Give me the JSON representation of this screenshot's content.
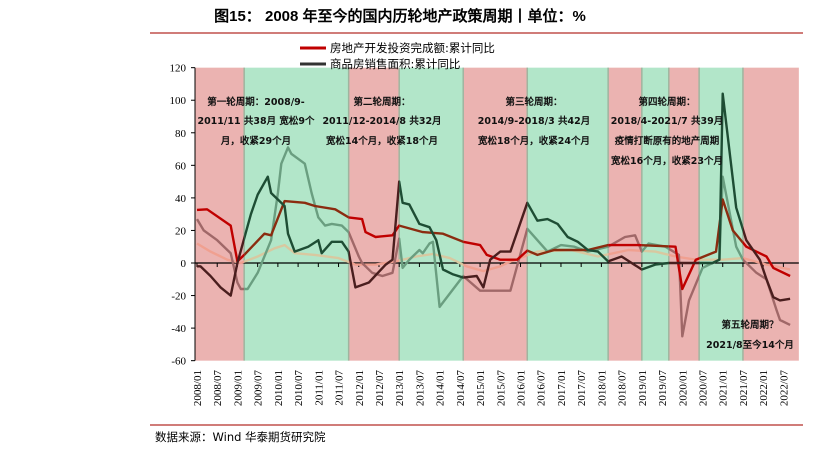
{
  "title": "图15：  2008 年至今的国内历轮地产政策周期丨单位：%",
  "source": "数据来源：Wind  华泰期货研究院",
  "colors": {
    "band_tight": "#ebb3b1",
    "band_loose": "#b2e6c9",
    "frame": "#c0504d"
  },
  "annotations": [
    [
      "第一轮周期：2008/9-",
      "2011/11 共38月 宽松9个",
      "月，收紧29个月"
    ],
    [
      "第二轮周期：",
      "2011/12-2014/8 共32月",
      "宽松14个月，收紧18个月"
    ],
    [
      "第三轮周期：",
      "2014/9-2018/3 共42月",
      "宽松18个月，收紧24个月"
    ],
    [
      "第四轮周期：",
      "2018/4-2021/7 共39月",
      "疫情打断原有的地产周期",
      "宽松16个月，收紧23个月"
    ],
    [
      "第五轮周期？",
      "2021/8至今14个月"
    ]
  ],
  "chart_data": {
    "type": "line",
    "title": "2008 年至今的国内历轮地产政策周期",
    "ylabel": "%",
    "ylim": [
      -60,
      120
    ],
    "yticks": [
      120,
      100,
      80,
      60,
      40,
      20,
      0,
      -20,
      -40,
      -60
    ],
    "xticks": [
      "2008/01",
      "2008/07",
      "2009/01",
      "2009/07",
      "2010/01",
      "2010/07",
      "2011/01",
      "2011/07",
      "2012/01",
      "2012/07",
      "2013/01",
      "2013/07",
      "2014/01",
      "2014/07",
      "2015/01",
      "2015/07",
      "2016/01",
      "2016/07",
      "2017/01",
      "2017/07",
      "2018/01",
      "2018/07",
      "2019/01",
      "2019/07",
      "2020/01",
      "2020/07",
      "2021/01",
      "2021/07",
      "2022/01",
      "2022/07"
    ],
    "xlim": [
      "2008/01",
      "2022/11"
    ],
    "grid": false,
    "legend_position": "top",
    "bands": [
      {
        "start": "2008/01",
        "end": "2009/03",
        "phase": "tight"
      },
      {
        "start": "2009/03",
        "end": "2011/10",
        "phase": "loose"
      },
      {
        "start": "2011/10",
        "end": "2013/01",
        "phase": "tight"
      },
      {
        "start": "2013/01",
        "end": "2014/08",
        "phase": "loose"
      },
      {
        "start": "2014/08",
        "end": "2016/03",
        "phase": "tight"
      },
      {
        "start": "2016/03",
        "end": "2018/03",
        "phase": "loose"
      },
      {
        "start": "2018/03",
        "end": "2019/01",
        "phase": "tight"
      },
      {
        "start": "2019/01",
        "end": "2019/09",
        "phase": "loose"
      },
      {
        "start": "2019/09",
        "end": "2020/06",
        "phase": "tight"
      },
      {
        "start": "2020/06",
        "end": "2021/07",
        "phase": "loose"
      },
      {
        "start": "2021/07",
        "end": "2022/11",
        "phase": "tight"
      }
    ],
    "series": [
      {
        "name": "房地产开发投资完成额:累计同比",
        "color_tight": "#c00000",
        "color_loose": "#8b2c10",
        "points": [
          [
            "2008/01",
            32.6
          ],
          [
            "2008/04",
            33
          ],
          [
            "2008/11",
            23
          ],
          [
            "2009/01",
            1
          ],
          [
            "2009/03",
            5
          ],
          [
            "2009/09",
            18
          ],
          [
            "2009/11",
            17
          ],
          [
            "2010/03",
            38
          ],
          [
            "2010/09",
            37
          ],
          [
            "2010/12",
            35
          ],
          [
            "2011/06",
            33
          ],
          [
            "2011/10",
            28
          ],
          [
            "2012/02",
            27
          ],
          [
            "2012/03",
            19
          ],
          [
            "2012/06",
            16
          ],
          [
            "2012/11",
            17
          ],
          [
            "2013/01",
            23
          ],
          [
            "2013/08",
            19
          ],
          [
            "2014/02",
            18
          ],
          [
            "2014/08",
            13
          ],
          [
            "2015/01",
            11
          ],
          [
            "2015/03",
            5
          ],
          [
            "2015/07",
            2
          ],
          [
            "2015/12",
            2
          ],
          [
            "2016/03",
            7.6
          ],
          [
            "2016/06",
            5
          ],
          [
            "2016/11",
            8
          ],
          [
            "2017/09",
            8
          ],
          [
            "2018/03",
            11
          ],
          [
            "2018/12",
            11
          ],
          [
            "2019/11",
            10
          ],
          [
            "2020/01",
            -16
          ],
          [
            "2020/05",
            2
          ],
          [
            "2020/11",
            7
          ],
          [
            "2021/01",
            39
          ],
          [
            "2021/04",
            20
          ],
          [
            "2021/08",
            10
          ],
          [
            "2022/02",
            4
          ],
          [
            "2022/04",
            -3
          ],
          [
            "2022/09",
            -8
          ]
        ]
      },
      {
        "name": "商品房销售面积:累计同比",
        "color_tight": "#4a1e1e",
        "color_loose": "#1e4d34",
        "points": [
          [
            "2008/01",
            -2
          ],
          [
            "2008/02",
            -2
          ],
          [
            "2008/05",
            -8
          ],
          [
            "2008/08",
            -15
          ],
          [
            "2008/11",
            -20
          ],
          [
            "2009/01",
            0
          ],
          [
            "2009/05",
            30
          ],
          [
            "2009/07",
            42
          ],
          [
            "2009/10",
            53
          ],
          [
            "2009/11",
            43
          ],
          [
            "2010/03",
            35
          ],
          [
            "2010/04",
            18
          ],
          [
            "2010/06",
            7
          ],
          [
            "2010/10",
            10
          ],
          [
            "2011/01",
            14
          ],
          [
            "2011/02",
            6
          ],
          [
            "2011/05",
            13
          ],
          [
            "2011/08",
            13
          ],
          [
            "2011/10",
            7
          ],
          [
            "2011/12",
            -15
          ],
          [
            "2012/04",
            -12
          ],
          [
            "2012/09",
            -1
          ],
          [
            "2012/11",
            2
          ],
          [
            "2013/01",
            50
          ],
          [
            "2013/02",
            37
          ],
          [
            "2013/04",
            36
          ],
          [
            "2013/07",
            24
          ],
          [
            "2013/10",
            22
          ],
          [
            "2013/12",
            14
          ],
          [
            "2014/02",
            -4
          ],
          [
            "2014/05",
            -7
          ],
          [
            "2014/08",
            -9
          ],
          [
            "2014/12",
            -8
          ],
          [
            "2015/02",
            -15
          ],
          [
            "2015/04",
            2
          ],
          [
            "2015/07",
            7
          ],
          [
            "2015/10",
            7
          ],
          [
            "2016/03",
            37
          ],
          [
            "2016/06",
            26
          ],
          [
            "2016/09",
            27
          ],
          [
            "2016/12",
            24
          ],
          [
            "2017/03",
            16
          ],
          [
            "2017/06",
            13
          ],
          [
            "2017/09",
            8
          ],
          [
            "2017/12",
            7
          ],
          [
            "2018/03",
            1
          ],
          [
            "2018/07",
            4
          ],
          [
            "2019/01",
            -4
          ],
          [
            "2019/05",
            -1
          ],
          [
            "2019/09",
            0
          ],
          [
            "2020/10",
            0
          ],
          [
            "2020/12",
            2
          ],
          [
            "2021/01",
            104
          ],
          [
            "2021/05",
            34
          ],
          [
            "2021/08",
            14
          ],
          [
            "2021/12",
            2
          ],
          [
            "2022/02",
            -10
          ],
          [
            "2022/04",
            -21
          ],
          [
            "2022/06",
            -23
          ],
          [
            "2022/09",
            -22
          ]
        ]
      },
      {
        "color_tight": "#a06868",
        "color_loose": "#6a9e80",
        "points": [
          [
            "2008/01",
            27
          ],
          [
            "2008/03",
            20
          ],
          [
            "2008/07",
            14
          ],
          [
            "2008/11",
            6
          ],
          [
            "2009/01",
            -12
          ],
          [
            "2009/02",
            -16
          ],
          [
            "2009/04",
            -16
          ],
          [
            "2009/07",
            -6
          ],
          [
            "2009/11",
            14
          ],
          [
            "2010/01",
            43
          ],
          [
            "2010/02",
            61
          ],
          [
            "2010/04",
            71
          ],
          [
            "2010/05",
            67
          ],
          [
            "2010/09",
            61
          ],
          [
            "2010/11",
            43
          ],
          [
            "2011/01",
            28
          ],
          [
            "2011/03",
            23
          ],
          [
            "2011/05",
            24
          ],
          [
            "2011/08",
            23
          ],
          [
            "2011/10",
            19
          ],
          [
            "2012/01",
            4
          ],
          [
            "2012/02",
            0
          ],
          [
            "2012/05",
            -6
          ],
          [
            "2012/08",
            -8
          ],
          [
            "2012/11",
            -6
          ],
          [
            "2013/01",
            15
          ],
          [
            "2013/02",
            -3
          ],
          [
            "2013/04",
            2
          ],
          [
            "2013/07",
            8
          ],
          [
            "2013/08",
            6
          ],
          [
            "2013/10",
            12
          ],
          [
            "2013/11",
            13
          ],
          [
            "2014/01",
            -27
          ],
          [
            "2014/08",
            -8
          ],
          [
            "2015/01",
            -17
          ],
          [
            "2015/10",
            -17
          ],
          [
            "2016/03",
            21
          ],
          [
            "2016/06",
            14
          ],
          [
            "2016/09",
            7
          ],
          [
            "2017/01",
            11
          ],
          [
            "2017/05",
            10
          ],
          [
            "2017/09",
            7
          ],
          [
            "2018/03",
            10
          ],
          [
            "2018/08",
            16
          ],
          [
            "2018/11",
            17
          ],
          [
            "2019/01",
            7
          ],
          [
            "2019/03",
            12
          ],
          [
            "2019/08",
            10
          ],
          [
            "2019/12",
            5
          ],
          [
            "2020/01",
            -45
          ],
          [
            "2020/03",
            -23
          ],
          [
            "2020/07",
            -3
          ],
          [
            "2020/12",
            2
          ],
          [
            "2021/01",
            53
          ],
          [
            "2021/05",
            10
          ],
          [
            "2021/07",
            2
          ],
          [
            "2021/11",
            -6
          ],
          [
            "2022/02",
            -10
          ],
          [
            "2022/05",
            -29
          ],
          [
            "2022/06",
            -35
          ],
          [
            "2022/09",
            -38
          ]
        ]
      },
      {
        "color_tight": "#f0a090",
        "color_loose": "#d8c8a0",
        "points": [
          [
            "2008/01",
            12
          ],
          [
            "2008/05",
            7
          ],
          [
            "2008/10",
            2
          ],
          [
            "2009/02",
            0
          ],
          [
            "2009/07",
            4
          ],
          [
            "2009/12",
            9
          ],
          [
            "2010/03",
            11
          ],
          [
            "2010/06",
            6
          ],
          [
            "2010/12",
            5
          ],
          [
            "2011/07",
            3
          ],
          [
            "2011/12",
            -1
          ],
          [
            "2012/06",
            -1
          ],
          [
            "2012/12",
            1
          ],
          [
            "2013/06",
            4
          ],
          [
            "2013/11",
            5.5
          ],
          [
            "2014/04",
            3
          ],
          [
            "2014/09",
            -2
          ],
          [
            "2015/02",
            -5
          ],
          [
            "2015/07",
            -2
          ],
          [
            "2015/09",
            0
          ],
          [
            "2016/02",
            4
          ],
          [
            "2016/06",
            7
          ],
          [
            "2017/04",
            8
          ],
          [
            "2017/12",
            4
          ],
          [
            "2018/09",
            8
          ],
          [
            "2019/05",
            7
          ],
          [
            "2019/11",
            4
          ],
          [
            "2020/05",
            2
          ],
          [
            "2021/01",
            2
          ],
          [
            "2021/07",
            3
          ],
          [
            "2022/02",
            -1
          ],
          [
            "2022/09",
            -4
          ]
        ]
      }
    ]
  }
}
